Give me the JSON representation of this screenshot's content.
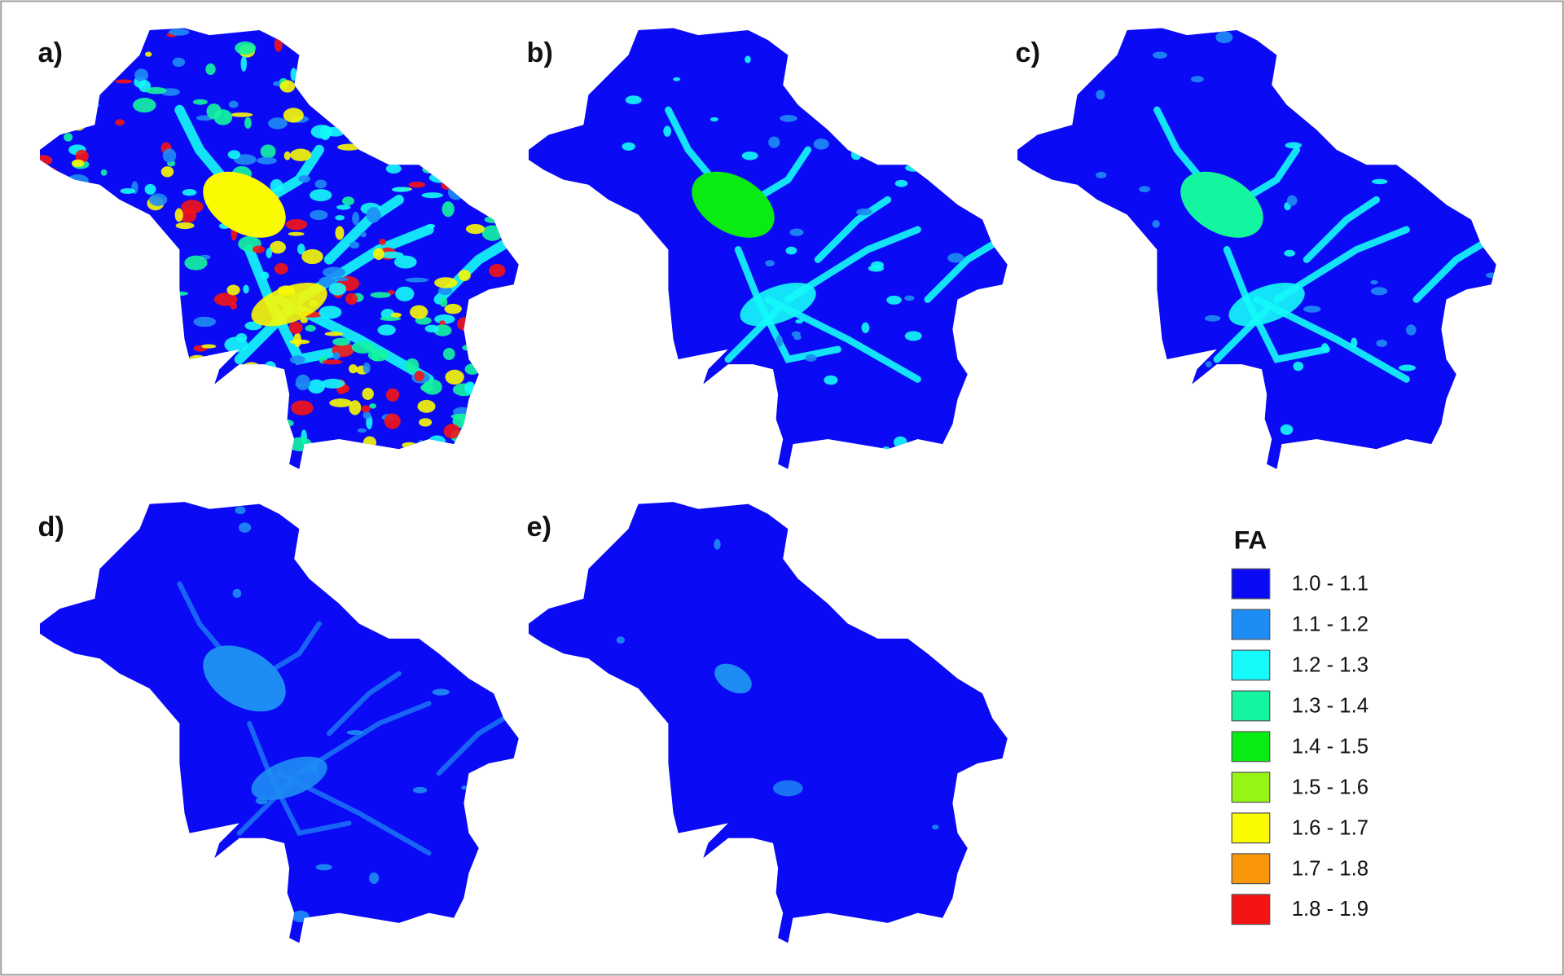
{
  "panels": [
    {
      "label": "a)"
    },
    {
      "label": "b)"
    },
    {
      "label": "c)"
    },
    {
      "label": "d)"
    },
    {
      "label": "e)"
    }
  ],
  "legend": {
    "title": "FA",
    "items": [
      {
        "label": "1.0 - 1.1",
        "color": "#0a0af5"
      },
      {
        "label": "1.1 - 1.2",
        "color": "#1e8cf5"
      },
      {
        "label": "1.2 - 1.3",
        "color": "#14fafa"
      },
      {
        "label": "1.3 - 1.4",
        "color": "#14f5a0"
      },
      {
        "label": "1.4 - 1.5",
        "color": "#0aeb14"
      },
      {
        "label": "1.5 - 1.6",
        "color": "#96f514"
      },
      {
        "label": "1.6 - 1.7",
        "color": "#fafa00"
      },
      {
        "label": "1.7 - 1.8",
        "color": "#fa960a"
      },
      {
        "label": "1.8 - 1.9",
        "color": "#f51414"
      }
    ]
  }
}
